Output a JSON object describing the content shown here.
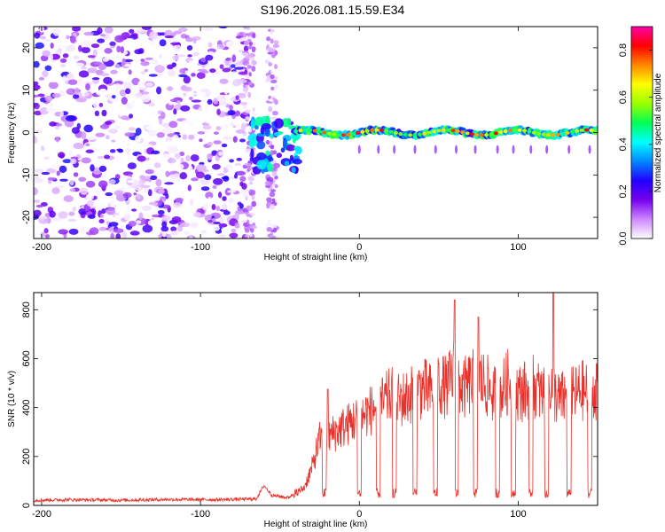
{
  "figure_title": "S196.2026.081.15.59.E34",
  "chart_data": [
    {
      "type": "heatmap",
      "title": "",
      "xlabel": "Height of straight line (km)",
      "ylabel": "Frequency (Hz)",
      "xlim": [
        -205,
        150
      ],
      "ylim": [
        -25,
        25
      ],
      "xticks": [
        -200,
        -100,
        0,
        100
      ],
      "yticks": [
        -20,
        -10,
        0,
        10,
        20
      ],
      "colorbar": {
        "label": "Normalized spectral amplitude",
        "range": [
          0,
          0.9
        ],
        "ticks": [
          "0.0",
          "0.2",
          "0.4",
          "0.6",
          "0.8"
        ],
        "colormap": [
          "#ffffff",
          "#cc88ff",
          "#7700ee",
          "#2200ff",
          "#0088ff",
          "#00ffff",
          "#00ff55",
          "#99ff00",
          "#ffff00",
          "#ff8800",
          "#ff0000",
          "#ff00aa"
        ]
      },
      "description_regions": [
        {
          "x_range": [
            -205,
            -70
          ],
          "freq_range": [
            -25,
            25
          ],
          "amplitude": "scattered low (0.05-0.2)"
        },
        {
          "x_range": [
            -70,
            -40
          ],
          "freq_range": [
            -10,
            5
          ],
          "amplitude": "patchy 0.2-0.5"
        },
        {
          "x_range": [
            -40,
            150
          ],
          "freq_range": [
            -1.5,
            1.5
          ],
          "amplitude": "ridge 0.3-0.9"
        }
      ]
    },
    {
      "type": "line",
      "title": "",
      "xlabel": "Height of straight line (km)",
      "ylabel": "SNR (10 * v/v)",
      "xlim": [
        -205,
        150
      ],
      "ylim": [
        0,
        870
      ],
      "xticks": [
        -200,
        -100,
        0,
        100
      ],
      "yticks": [
        0,
        200,
        400,
        600,
        800
      ],
      "color": "#e8312a",
      "series": [
        {
          "name": "SNR",
          "x": [
            -205,
            -180,
            -150,
            -120,
            -90,
            -65,
            -60,
            -55,
            -45,
            -35,
            -30,
            -25,
            -20,
            -15,
            -10,
            -5,
            0,
            5,
            10,
            15,
            20,
            25,
            30,
            35,
            40,
            45,
            50,
            55,
            60,
            65,
            70,
            75,
            80,
            85,
            90,
            95,
            100,
            105,
            110,
            115,
            120,
            125,
            130,
            135,
            140,
            145,
            150
          ],
          "values": [
            20,
            22,
            20,
            23,
            22,
            25,
            80,
            40,
            30,
            70,
            150,
            270,
            280,
            300,
            320,
            340,
            360,
            380,
            400,
            420,
            450,
            430,
            440,
            470,
            480,
            460,
            500,
            480,
            550,
            470,
            500,
            520,
            490,
            450,
            470,
            520,
            460,
            470,
            490,
            450,
            500,
            430,
            440,
            450,
            470,
            460,
            480
          ],
          "dips": [
            -40,
            -22,
            0,
            12,
            22,
            35,
            48,
            61,
            73,
            87,
            97,
            108,
            118,
            132,
            145
          ],
          "spikes": [
            {
              "x": 60,
              "y": 840
            },
            {
              "x": 75,
              "y": 770
            },
            {
              "x": 122,
              "y": 870
            },
            {
              "x": -20,
              "y": 475
            }
          ]
        }
      ]
    }
  ],
  "colors": {
    "line": "#e8312a",
    "axis": "#000000"
  }
}
